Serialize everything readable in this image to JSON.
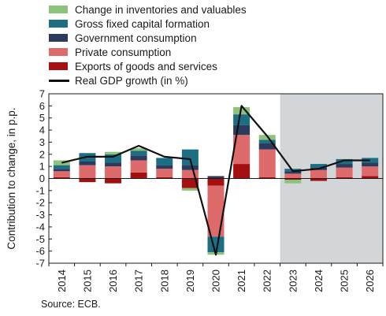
{
  "chart_data": {
    "type": "bar",
    "stacked": true,
    "ylabel": "Contribution to change, in p.p.",
    "ylim": [
      -7,
      7
    ],
    "yticks": [
      -7,
      -6,
      -5,
      -4,
      -3,
      -2,
      -1,
      0,
      1,
      2,
      3,
      4,
      5,
      6,
      7
    ],
    "ytick_labels": [
      "-7",
      "-6",
      "-5",
      "-4",
      "-3",
      "-2",
      "-1",
      "0",
      "1",
      "2",
      "3",
      "4",
      "5",
      "6",
      "7"
    ],
    "categories": [
      "2014",
      "2015",
      "2016",
      "2017",
      "2018",
      "2019",
      "2020",
      "2021",
      "2022",
      "2023",
      "2024",
      "2025",
      "2026"
    ],
    "projection_start": "2023",
    "legend_position": "top-left",
    "grid": false,
    "series": [
      {
        "name": "Change in inventories and valuables",
        "color": "#8cc27a",
        "values": [
          0.4,
          0.0,
          0.2,
          0.2,
          0.0,
          -0.2,
          -0.2,
          0.6,
          0.4,
          -0.3,
          0.0,
          0.0,
          0.0
        ]
      },
      {
        "name": "Gross fixed capital formation",
        "color": "#1d6e82",
        "values": [
          0.3,
          0.7,
          0.7,
          0.4,
          0.6,
          1.3,
          -1.3,
          0.9,
          0.3,
          0.2,
          0.3,
          0.4,
          0.4
        ]
      },
      {
        "name": "Government consumption",
        "color": "#2c3a5e",
        "values": [
          0.2,
          0.3,
          0.3,
          0.4,
          0.3,
          0.4,
          0.2,
          0.8,
          0.5,
          0.2,
          0.2,
          0.3,
          0.3
        ]
      },
      {
        "name": "Private consumption",
        "color": "#de6b6b",
        "values": [
          0.5,
          1.1,
          1.0,
          1.0,
          0.7,
          0.7,
          -4.2,
          2.4,
          2.3,
          0.4,
          0.7,
          0.8,
          0.8
        ]
      },
      {
        "name": "Exports of goods and services",
        "color": "#a50f0f",
        "values": [
          0.1,
          -0.3,
          -0.4,
          0.5,
          0.1,
          -0.8,
          -0.6,
          1.2,
          0.1,
          -0.1,
          -0.2,
          0.1,
          0.2
        ]
      }
    ],
    "line": {
      "name": "Real GDP growth (in %)",
      "color": "#111111",
      "values": [
        1.3,
        1.8,
        1.8,
        2.7,
        1.8,
        1.6,
        -6.3,
        6.0,
        3.5,
        0.6,
        0.8,
        1.5,
        1.5
      ]
    }
  },
  "footer": {
    "source": "Source: ECB."
  },
  "colors": {
    "axis": "#1a1a1a",
    "projection_shade": "#d3d6d9"
  }
}
